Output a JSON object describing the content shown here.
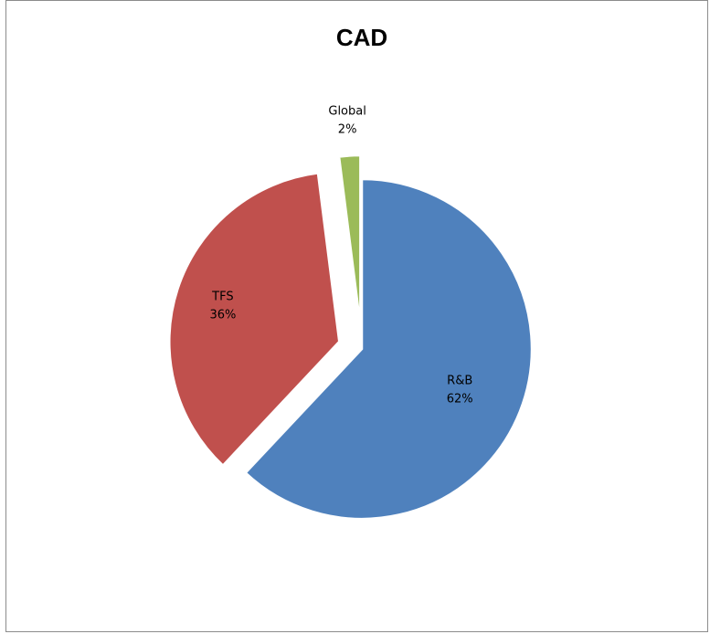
{
  "chart_data": {
    "type": "pie",
    "title": "CAD",
    "slices": [
      {
        "label": "R&B",
        "value": 62,
        "value_label": "62%",
        "color": "#4F81BD",
        "exploded": false
      },
      {
        "label": "TFS",
        "value": 36,
        "value_label": "36%",
        "color": "#C0504D",
        "exploded": true
      },
      {
        "label": "Global",
        "value": 2,
        "value_label": "2%",
        "color": "#9BBB59",
        "exploded": true
      }
    ],
    "legend": "none"
  }
}
